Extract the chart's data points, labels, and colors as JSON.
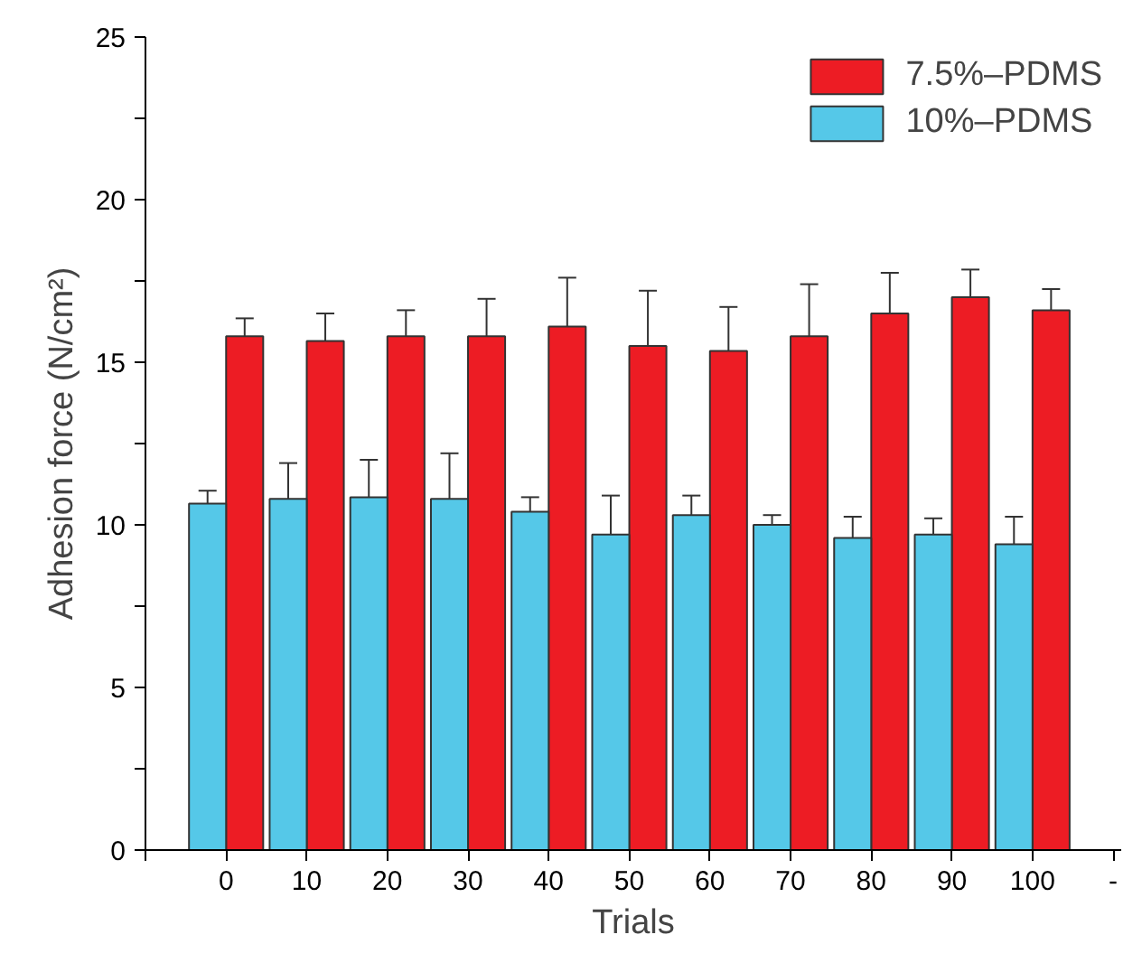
{
  "chart_data": {
    "type": "bar",
    "xlabel": "Trials",
    "ylabel": "Adhesion force (N/cm²)",
    "x": [
      0,
      10,
      20,
      30,
      40,
      50,
      60,
      70,
      80,
      90,
      100
    ],
    "series": [
      {
        "name": "7.5%–PDMS",
        "color": "#ed1c24",
        "values": [
          15.8,
          15.65,
          15.8,
          15.8,
          16.1,
          15.5,
          15.35,
          15.8,
          16.5,
          17.0,
          16.6
        ],
        "errors": [
          [
            15.8,
            16.35
          ],
          [
            15.65,
            16.5
          ],
          [
            15.8,
            16.6
          ],
          [
            15.8,
            16.95
          ],
          [
            16.1,
            17.6
          ],
          [
            15.5,
            17.2
          ],
          [
            15.35,
            16.7
          ],
          [
            15.8,
            17.4
          ],
          [
            16.5,
            17.75
          ],
          [
            17.0,
            17.85
          ],
          [
            16.6,
            17.25
          ]
        ]
      },
      {
        "name": "10%–PDMS",
        "color": "#55c8e8",
        "values": [
          10.65,
          10.8,
          10.85,
          10.8,
          10.4,
          9.7,
          10.3,
          10.0,
          9.6,
          9.7,
          9.4
        ],
        "errors": [
          [
            10.65,
            11.05
          ],
          [
            10.8,
            11.9
          ],
          [
            10.85,
            12.0
          ],
          [
            10.8,
            12.2
          ],
          [
            10.4,
            10.85
          ],
          [
            9.7,
            10.9
          ],
          [
            10.3,
            10.9
          ],
          [
            10.0,
            10.3
          ],
          [
            9.6,
            10.25
          ],
          [
            9.7,
            10.2
          ],
          [
            9.4,
            10.25
          ]
        ]
      }
    ],
    "xlim": [
      -10,
      111
    ],
    "xticks": [
      {
        "value": -10,
        "label": null
      },
      0,
      10,
      20,
      30,
      40,
      50,
      60,
      70,
      80,
      90,
      100,
      {
        "value": 110,
        "label": "-"
      }
    ],
    "ylim": [
      0,
      25
    ],
    "yticks": [
      0,
      {
        "value": 2.5,
        "label": null
      },
      5,
      {
        "value": 7.5,
        "label": null
      },
      10,
      {
        "value": 12.5,
        "label": null
      },
      15,
      {
        "value": 17.5,
        "label": null
      },
      20,
      {
        "value": 22.5,
        "label": null
      },
      25
    ],
    "grid": false,
    "legend": "top right"
  }
}
